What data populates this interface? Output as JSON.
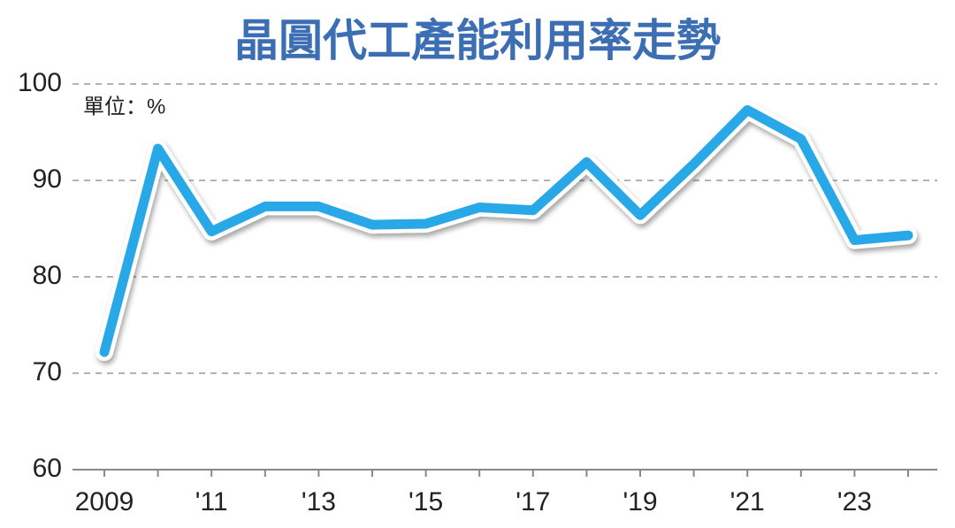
{
  "chart_data": {
    "type": "line",
    "title": "晶圓代工產能利用率走勢",
    "unit_label": "單位：%",
    "categories": [
      "2009",
      null,
      "'11",
      null,
      "'13",
      null,
      "'15",
      null,
      "'17",
      null,
      "'19",
      null,
      "'21",
      null,
      "'23",
      null
    ],
    "series": [
      {
        "color": "#29a8e8",
        "values": [
          72.2,
          93.3,
          84.7,
          87.3,
          87.3,
          85.4,
          85.5,
          87.2,
          86.9,
          91.9,
          86.4,
          91.7,
          97.3,
          94.3,
          83.8,
          84.3
        ]
      }
    ],
    "ylim": [
      60,
      100
    ],
    "yticks": [
      60,
      70,
      80,
      90,
      100
    ],
    "grid": true
  }
}
